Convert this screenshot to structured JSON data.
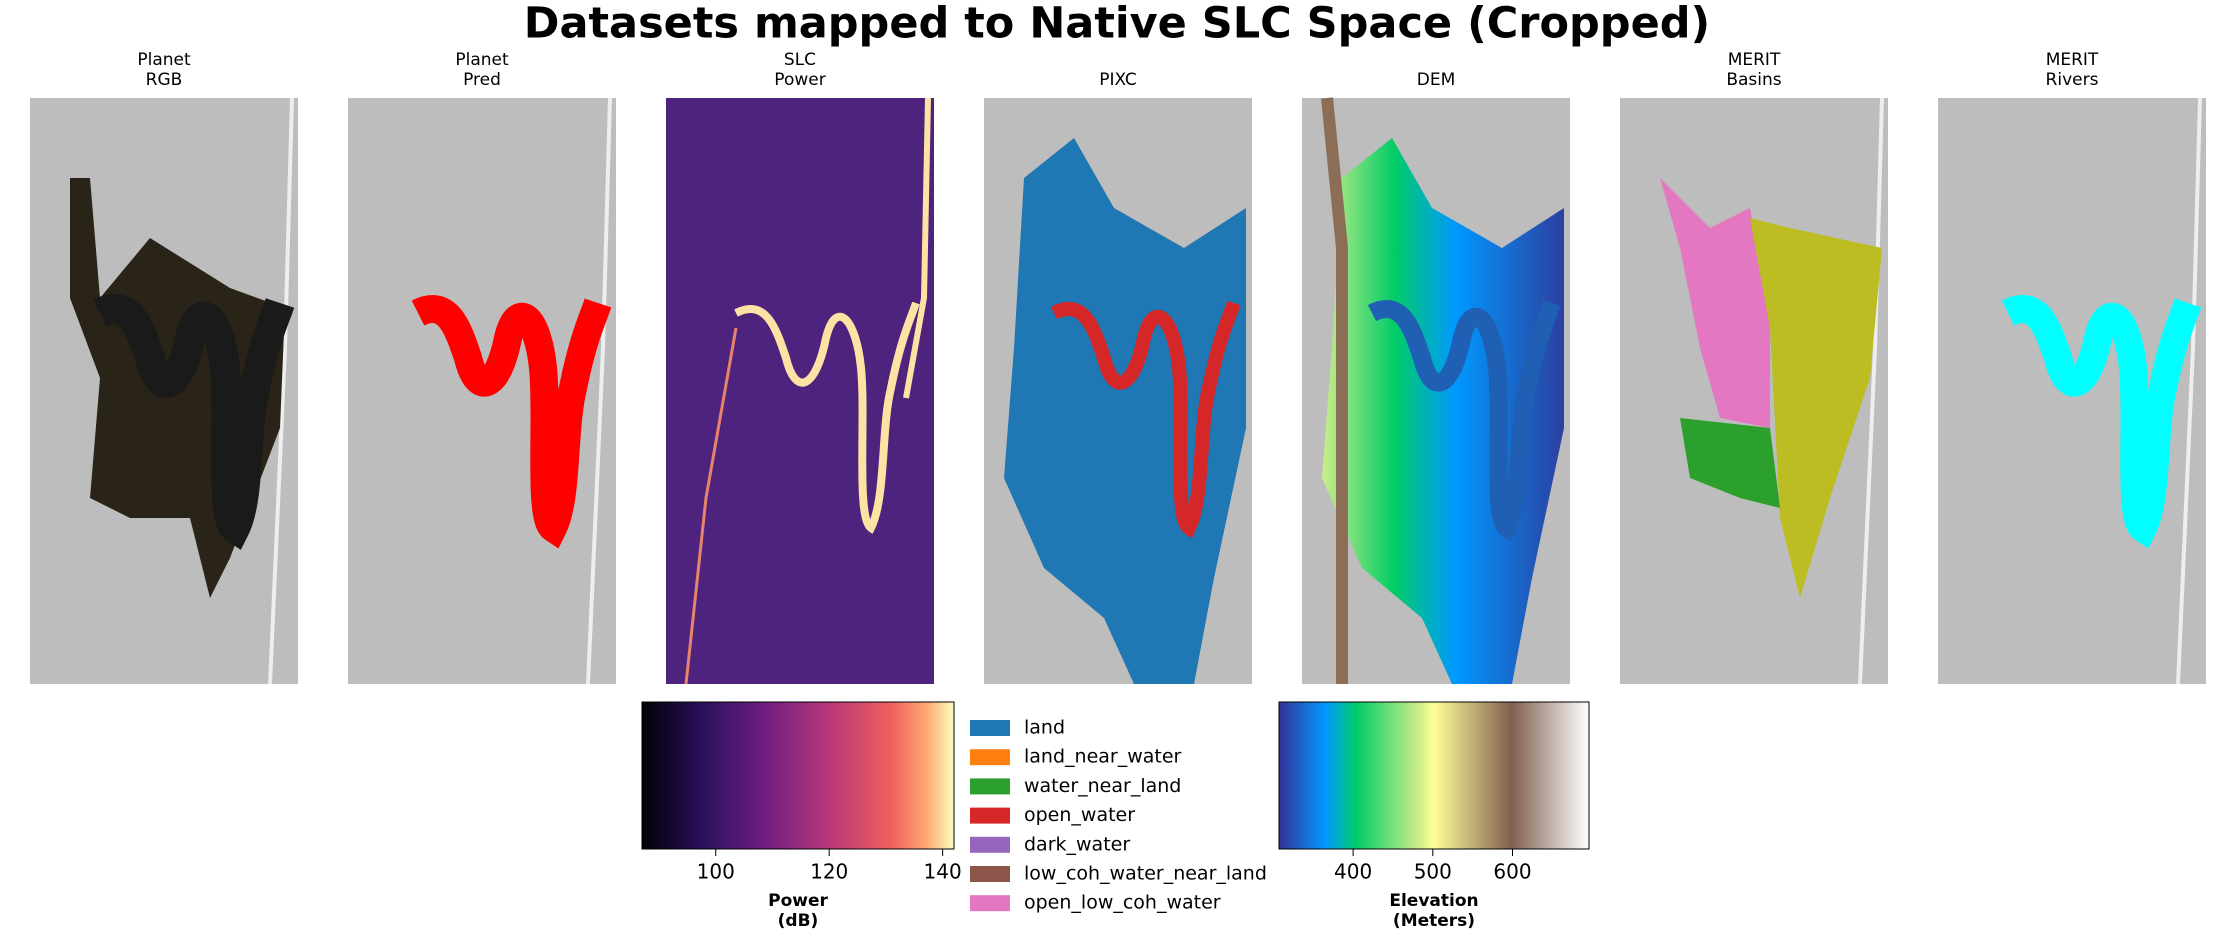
{
  "title": "Datasets mapped to Native SLC Space (Cropped)",
  "panels": [
    {
      "title": [
        "Planet",
        "RGB"
      ]
    },
    {
      "title": [
        "Planet",
        "Pred"
      ]
    },
    {
      "title": [
        "SLC",
        "Power"
      ]
    },
    {
      "title": [
        "PIXC"
      ]
    },
    {
      "title": [
        "DEM"
      ]
    },
    {
      "title": [
        "MERIT",
        "Basins"
      ]
    },
    {
      "title": [
        "MERIT",
        "Rivers"
      ]
    }
  ],
  "colorbars": [
    {
      "label": [
        "Power",
        "(dB)"
      ],
      "xlim": [
        87,
        142
      ],
      "xticks": [
        100,
        120,
        140
      ]
    },
    {
      "label": [
        "Elevation",
        "(Meters)"
      ],
      "xlim": [
        307,
        696
      ],
      "xticks": [
        400,
        500,
        600
      ]
    }
  ],
  "legend": [
    {
      "name": "land",
      "color": "#1f77b4"
    },
    {
      "name": "land_near_water",
      "color": "#ff7f0e"
    },
    {
      "name": "water_near_land",
      "color": "#2ca02c"
    },
    {
      "name": "open_water",
      "color": "#d62728"
    },
    {
      "name": "dark_water",
      "color": "#9467bd"
    },
    {
      "name": "low_coh_water_near_land",
      "color": "#8c564b"
    },
    {
      "name": "open_low_coh_water",
      "color": "#e377c2"
    }
  ]
}
